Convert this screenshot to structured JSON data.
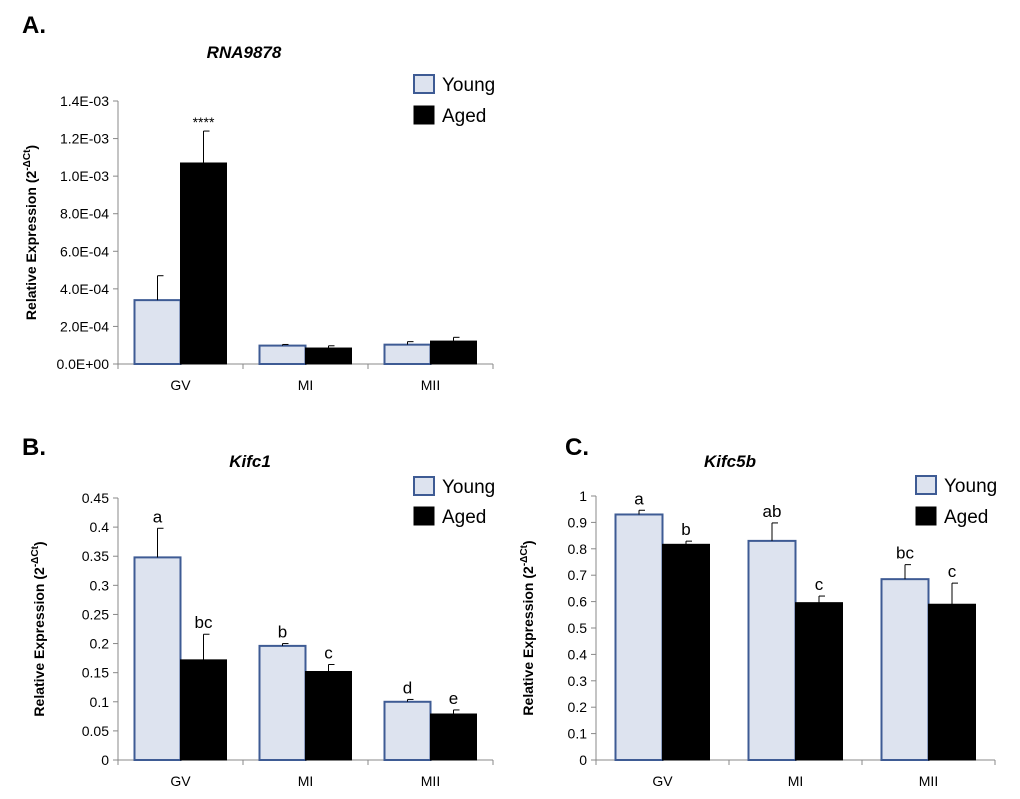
{
  "chart_data": [
    {
      "panel": "A.",
      "type": "bar",
      "title": "RNA9878",
      "ylabel": "Relative Expression (2",
      "ylabel_sup": "-ΔCt",
      "ylabel_close": ")",
      "categories": [
        "GV",
        "MI",
        "MII"
      ],
      "ylim": [
        0,
        0.0014
      ],
      "yticks": [
        0,
        0.0002,
        0.0004,
        0.0006,
        0.0008,
        0.001,
        0.0012,
        0.0014
      ],
      "ytick_labels": [
        "0.0E+00",
        "2.0E-04",
        "4.0E-04",
        "6.0E-04",
        "8.0E-04",
        "1.0E-03",
        "1.2E-03",
        "1.4E-03"
      ],
      "series": [
        {
          "name": "Young",
          "values": [
            0.00034,
            9.8e-05,
            0.000103
          ],
          "errors": [
            0.00013,
            6e-06,
            1.6e-05
          ],
          "labels": [
            "",
            "",
            ""
          ]
        },
        {
          "name": "Aged",
          "values": [
            0.00107,
            8.5e-05,
            0.000122
          ],
          "errors": [
            0.00017,
            1.2e-05,
            2e-05
          ],
          "labels": [
            "****",
            "",
            ""
          ]
        }
      ]
    },
    {
      "panel": "B.",
      "type": "bar",
      "title": "Kifc1",
      "ylabel": "Relative Expression (2",
      "ylabel_sup": "-ΔCt",
      "ylabel_close": ")",
      "categories": [
        "GV",
        "MI",
        "MII"
      ],
      "ylim": [
        0,
        0.45
      ],
      "yticks": [
        0,
        0.05,
        0.1,
        0.15,
        0.2,
        0.25,
        0.3,
        0.35,
        0.4,
        0.45
      ],
      "ytick_labels": [
        "0",
        "0.05",
        "0.1",
        "0.15",
        "0.2",
        "0.25",
        "0.3",
        "0.35",
        "0.4",
        "0.45"
      ],
      "series": [
        {
          "name": "Young",
          "values": [
            0.348,
            0.196,
            0.1
          ],
          "errors": [
            0.05,
            0.004,
            0.004
          ],
          "labels": [
            "a",
            "b",
            "d"
          ]
        },
        {
          "name": "Aged",
          "values": [
            0.172,
            0.152,
            0.079
          ],
          "errors": [
            0.044,
            0.012,
            0.007
          ],
          "labels": [
            "bc",
            "c",
            "e"
          ]
        }
      ]
    },
    {
      "panel": "C.",
      "type": "bar",
      "title": "Kifc5b",
      "ylabel": "Relative Expression (2",
      "ylabel_sup": "-ΔCt",
      "ylabel_close": ")",
      "categories": [
        "GV",
        "MI",
        "MII"
      ],
      "ylim": [
        0,
        1
      ],
      "yticks": [
        0,
        0.1,
        0.2,
        0.3,
        0.4,
        0.5,
        0.6,
        0.7,
        0.8,
        0.9,
        1
      ],
      "ytick_labels": [
        "0",
        "0.1",
        "0.2",
        "0.3",
        "0.4",
        "0.5",
        "0.6",
        "0.7",
        "0.8",
        "0.9",
        "1"
      ],
      "series": [
        {
          "name": "Young",
          "values": [
            0.93,
            0.83,
            0.685
          ],
          "errors": [
            0.016,
            0.068,
            0.055
          ],
          "labels": [
            "a",
            "ab",
            "bc"
          ]
        },
        {
          "name": "Aged",
          "values": [
            0.817,
            0.596,
            0.59
          ],
          "errors": [
            0.012,
            0.025,
            0.08
          ],
          "labels": [
            "b",
            "c",
            "c"
          ]
        }
      ]
    }
  ],
  "colors": {
    "young_fill": "#dde3ef",
    "young_stroke": "#3e5b94",
    "aged_fill": "#000000",
    "axis": "#888888"
  }
}
